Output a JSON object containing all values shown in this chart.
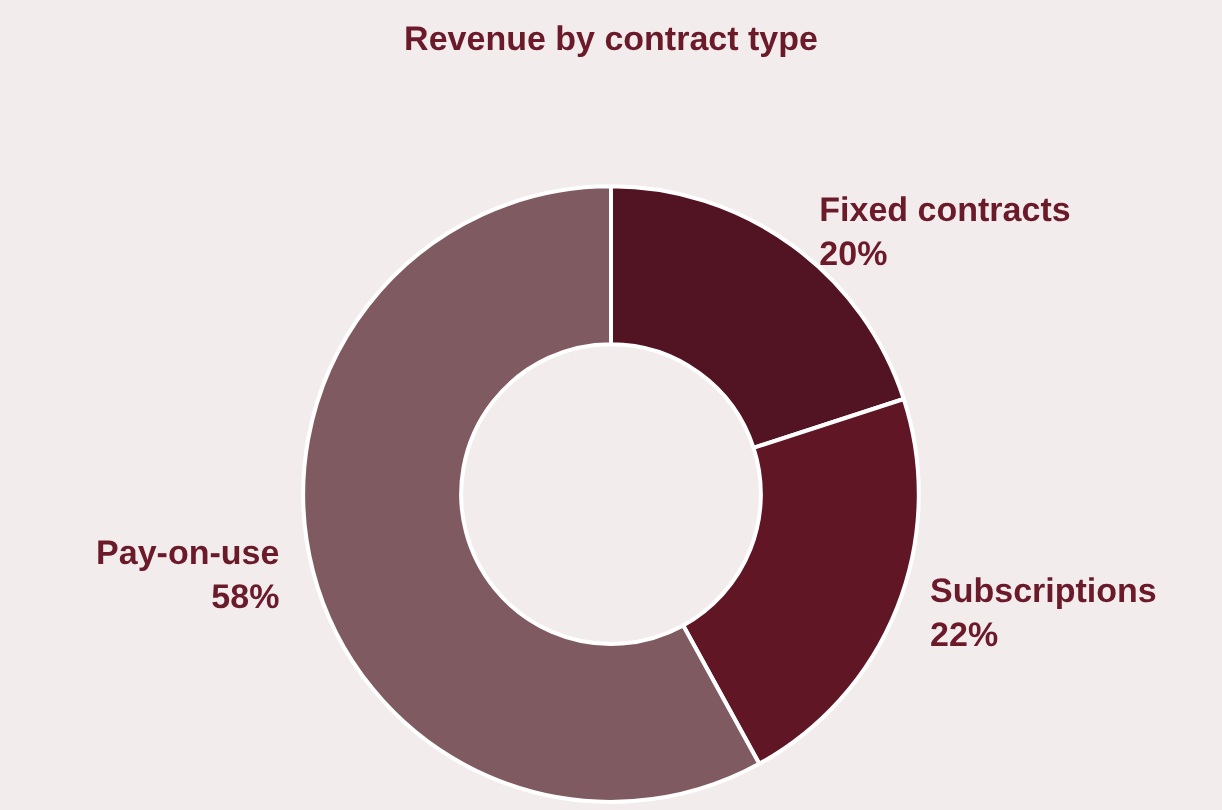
{
  "chart_data": {
    "type": "donut",
    "title": "Revenue by contract type",
    "categories": [
      "Fixed contracts",
      "Subscriptions",
      "Pay-on-use"
    ],
    "values": [
      20,
      22,
      58
    ],
    "colors": [
      "#521422",
      "#611626",
      "#7f5b61"
    ],
    "value_labels": [
      "20%",
      "22%",
      "58%"
    ],
    "legend": false
  }
}
